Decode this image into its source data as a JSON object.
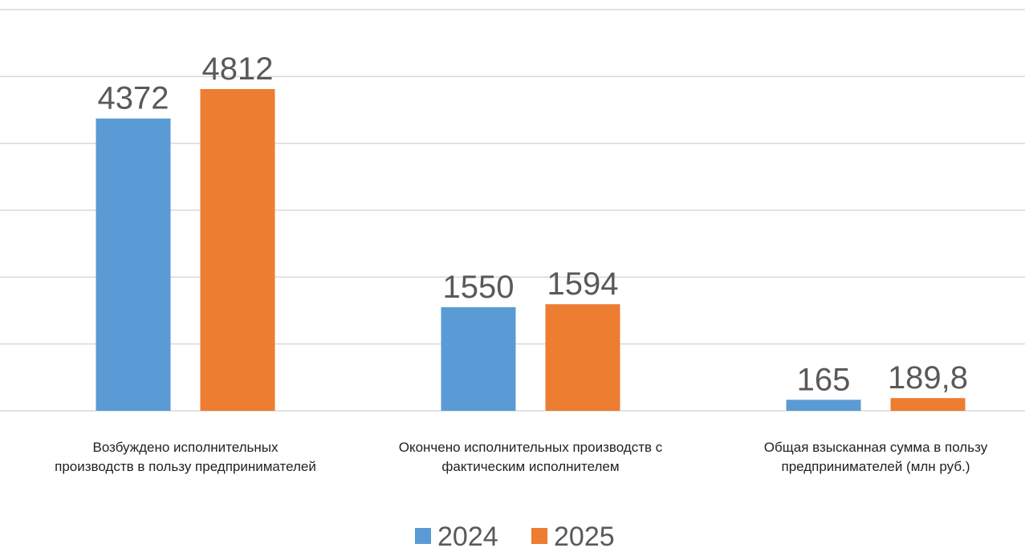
{
  "chart_data": {
    "type": "bar",
    "categories": [
      "Возбуждено исполнительных производств в пользу предпринимателей",
      "Окончено исполнительных производств с фактическим исполнителем",
      "Общая взысканная сумма в пользу предпринимателей (млн руб.)"
    ],
    "series": [
      {
        "name": "2024",
        "color": "#5b9bd5",
        "values": [
          4372,
          1550,
          165
        ]
      },
      {
        "name": "2025",
        "color": "#ed7d31",
        "values": [
          4812,
          1594,
          189.8
        ],
        "value_labels": [
          "4812",
          "1594",
          "189,8"
        ]
      }
    ],
    "ylim": [
      0,
      6000
    ],
    "yticks": [
      0,
      1000,
      2000,
      3000,
      4000,
      5000,
      6000
    ],
    "grid": true,
    "legend": "bottom"
  }
}
